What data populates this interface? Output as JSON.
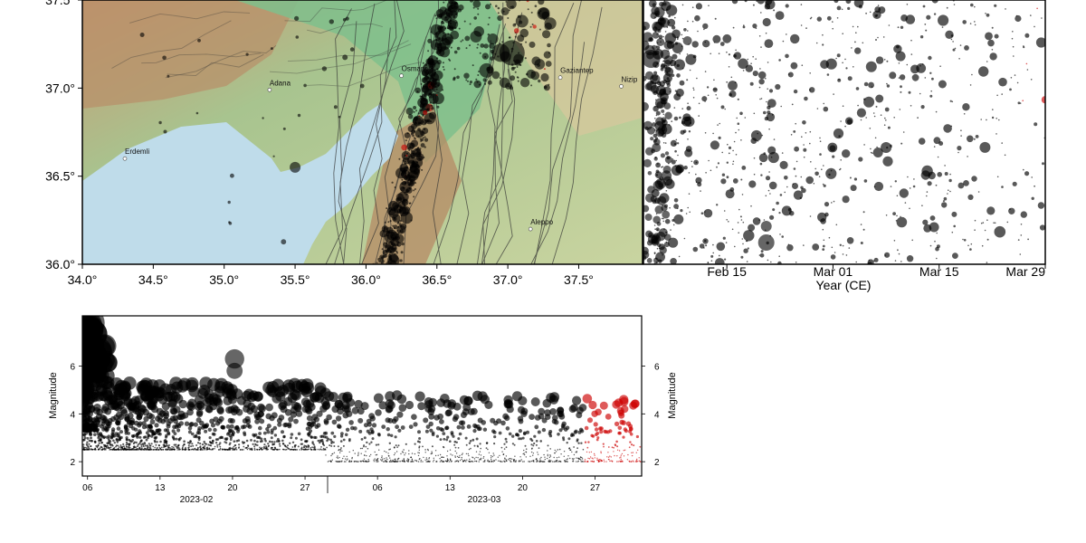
{
  "chart_data": [
    {
      "type": "scatter",
      "panel": "map",
      "xlim": [
        34.0,
        37.95
      ],
      "ylim": [
        36.0,
        37.5
      ],
      "x_ticks": [
        "34.0°",
        "34.5°",
        "35.0°",
        "35.5°",
        "36.0°",
        "36.5°",
        "37.0°",
        "37.5°"
      ],
      "y_ticks": [
        "36.0°",
        "36.5°",
        "37.0°",
        "37.5°"
      ],
      "cities": [
        {
          "name": "Adana",
          "lon": 35.32,
          "lat": 36.99
        },
        {
          "name": "Osmaniye",
          "lon": 36.25,
          "lat": 37.07
        },
        {
          "name": "Gaziantep",
          "lon": 37.37,
          "lat": 37.06
        },
        {
          "name": "Nizip",
          "lon": 37.8,
          "lat": 37.01
        },
        {
          "name": "Erdemli",
          "lon": 34.3,
          "lat": 36.6
        },
        {
          "name": "Aleppo",
          "lon": 37.16,
          "lat": 36.2
        }
      ],
      "colors": {
        "sea": "#bfdcea",
        "lowland": "#8fc79a",
        "highland": "#c9a07a",
        "events": "#000000",
        "recent": "#cc0000"
      }
    },
    {
      "type": "scatter",
      "panel": "time-latitude",
      "xlabel": "Year (CE)",
      "x_ticks": [
        "Feb 15",
        "Mar 01",
        "Mar 15",
        "Mar 29"
      ],
      "colors": {
        "events": "#000000",
        "recent": "#cc0000"
      }
    },
    {
      "type": "scatter",
      "panel": "magnitude-time",
      "ylabel": "Magnitude",
      "ylabel_right": "Magnitude",
      "ylim": [
        1.4,
        8.1
      ],
      "y_ticks": [
        "2",
        "4",
        "6"
      ],
      "x_ticks": [
        "06",
        "13",
        "20",
        "27",
        "06",
        "13",
        "20",
        "27"
      ],
      "month_labels": [
        "2023-02",
        "2023-03"
      ],
      "notable_events": [
        {
          "date": "2023-02-06",
          "magnitude": 7.8
        },
        {
          "date": "2023-02-06",
          "magnitude": 7.5
        },
        {
          "date": "2023-02-06",
          "magnitude": 6.7
        },
        {
          "date": "2023-02-06",
          "magnitude": 6.2
        },
        {
          "date": "2023-02-20",
          "magnitude": 6.3
        },
        {
          "date": "2023-02-20",
          "magnitude": 5.8
        }
      ],
      "colors": {
        "events": "#000000",
        "recent": "#cc0000"
      }
    }
  ]
}
